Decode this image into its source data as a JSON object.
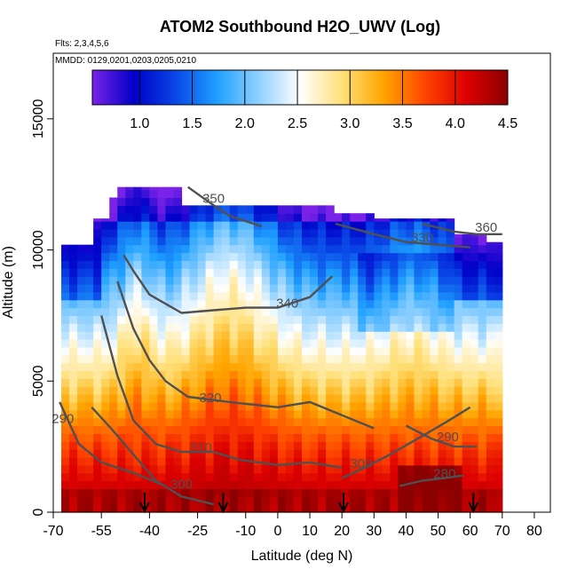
{
  "chart_data": {
    "type": "heatmap",
    "title": "ATOM2 Southbound H2O_UWV (Log)",
    "notes": [
      "Flts: 2,3,4,5,6",
      "MMDD: 0129,0201,0203,0205,0210"
    ],
    "xlabel": "Latitude (deg N)",
    "ylabel": "Altitude (m)",
    "xlim": [
      -70,
      85
    ],
    "ylim": [
      0,
      17500
    ],
    "x_ticks": [
      -70,
      -55,
      -40,
      -25,
      -10,
      0,
      10,
      20,
      30,
      40,
      50,
      60,
      70,
      80
    ],
    "x_tick_labels": [
      "-70",
      "-55",
      "-40",
      "-25",
      "-10",
      "0",
      "10",
      "20",
      "30",
      "40",
      "50",
      "60",
      "70",
      "80"
    ],
    "y_ticks": [
      0,
      5000,
      10000,
      15000
    ],
    "y_tick_labels": [
      "0",
      "5000",
      "10000",
      "15000"
    ],
    "colorbar": {
      "range": [
        0.55,
        4.5
      ],
      "ticks": [
        1.0,
        1.5,
        2.0,
        2.5,
        3.0,
        3.5,
        4.0,
        4.5
      ],
      "tick_labels": [
        "1.0",
        "1.5",
        "2.0",
        "2.5",
        "3.0",
        "3.5",
        "4.0",
        "4.5"
      ],
      "stops": [
        "#7a22e8",
        "#0000c8",
        "#0a46e6",
        "#1ea0ff",
        "#8fd0ff",
        "#ffffff",
        "#ffe07a",
        "#ffa500",
        "#ff4500",
        "#dc0000",
        "#8b0000"
      ]
    },
    "isentropes": [
      {
        "label": "290",
        "label_x": -67,
        "label_y": 3400,
        "points": [
          [
            -68,
            4200
          ],
          [
            -62,
            2600
          ],
          [
            -55,
            1900
          ],
          [
            -45,
            1500
          ],
          [
            -35,
            1000
          ]
        ]
      },
      {
        "label": "300",
        "label_x": -30,
        "label_y": 900,
        "points": [
          [
            -58,
            4000
          ],
          [
            -52,
            3200
          ],
          [
            -45,
            2200
          ],
          [
            -38,
            1200
          ],
          [
            -30,
            600
          ],
          [
            -20,
            300
          ]
        ]
      },
      {
        "label": "310",
        "label_x": -24,
        "label_y": 2300,
        "points": [
          [
            -55,
            7500
          ],
          [
            -50,
            5200
          ],
          [
            -45,
            3500
          ],
          [
            -38,
            2600
          ],
          [
            -30,
            2300
          ],
          [
            -20,
            2300
          ],
          [
            -12,
            2000
          ],
          [
            0,
            1800
          ],
          [
            10,
            1900
          ],
          [
            20,
            1700
          ]
        ]
      },
      {
        "label": "320",
        "label_x": -21,
        "label_y": 4200,
        "points": [
          [
            -50,
            8800
          ],
          [
            -45,
            7000
          ],
          [
            -40,
            5800
          ],
          [
            -35,
            5000
          ],
          [
            -28,
            4400
          ],
          [
            -15,
            4200
          ],
          [
            0,
            4000
          ],
          [
            10,
            4200
          ],
          [
            20,
            3700
          ],
          [
            30,
            3200
          ]
        ]
      },
      {
        "label": "340",
        "label_x": 3,
        "label_y": 7800,
        "points": [
          [
            -48,
            9800
          ],
          [
            -45,
            9200
          ],
          [
            -40,
            8300
          ],
          [
            -30,
            7600
          ],
          [
            -20,
            7700
          ],
          [
            -10,
            7800
          ],
          [
            0,
            7800
          ],
          [
            10,
            8200
          ],
          [
            17,
            9000
          ]
        ]
      },
      {
        "label": "350",
        "label_x": -20,
        "label_y": 11800,
        "points": [
          [
            -28,
            12400
          ],
          [
            -20,
            11700
          ],
          [
            -15,
            11300
          ],
          [
            -5,
            10900
          ]
        ]
      },
      {
        "label": "330",
        "label_x": 45,
        "label_y": 10300,
        "points": [
          [
            18,
            11000
          ],
          [
            30,
            10600
          ],
          [
            40,
            10300
          ],
          [
            50,
            10200
          ],
          [
            60,
            10100
          ]
        ]
      },
      {
        "label": "360",
        "label_x": 65,
        "label_y": 10700,
        "points": [
          [
            45,
            11000
          ],
          [
            55,
            10700
          ],
          [
            62,
            10600
          ],
          [
            70,
            10600
          ]
        ]
      },
      {
        "label": "290",
        "label_x": 53,
        "label_y": 2700,
        "points": [
          [
            40,
            3300
          ],
          [
            48,
            2800
          ],
          [
            55,
            2500
          ],
          [
            62,
            2500
          ]
        ]
      },
      {
        "label": "300",
        "label_x": 26,
        "label_y": 1700,
        "points": [
          [
            20,
            1300
          ],
          [
            27,
            1700
          ],
          [
            35,
            2200
          ],
          [
            45,
            2900
          ],
          [
            52,
            3400
          ],
          [
            60,
            4000
          ]
        ]
      },
      {
        "label": "280",
        "label_x": 52,
        "label_y": 1300,
        "points": [
          [
            38,
            1000
          ],
          [
            45,
            1200
          ],
          [
            52,
            1300
          ],
          [
            58,
            1400
          ]
        ]
      }
    ],
    "flight_markers_x": [
      -41.5,
      -17,
      20.5,
      61
    ]
  }
}
